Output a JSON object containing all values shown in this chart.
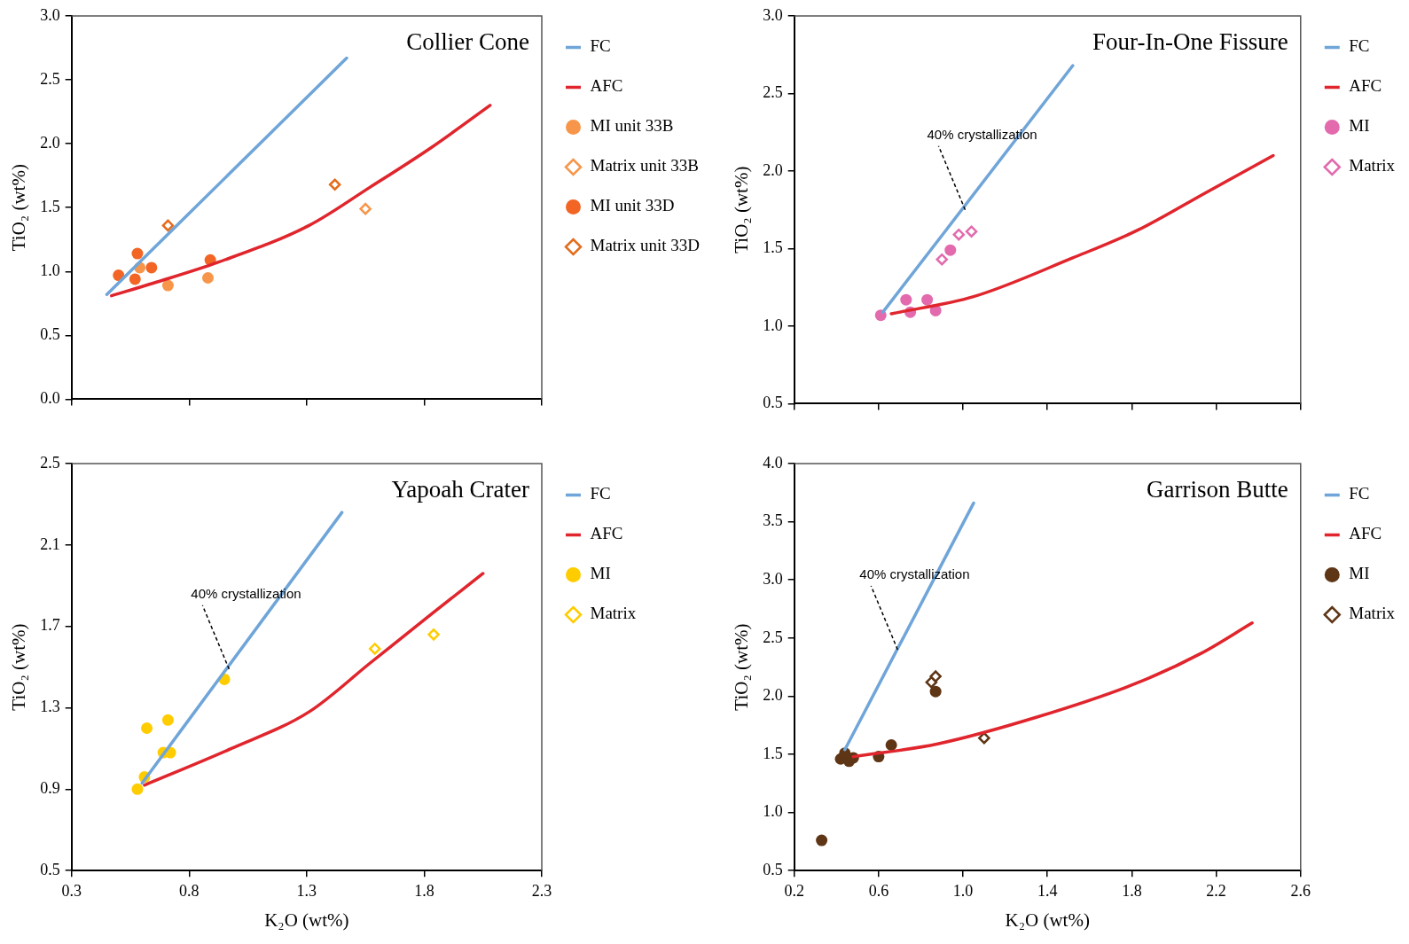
{
  "chart_data": [
    {
      "type": "scatter",
      "title": "Collier Cone",
      "ylabel": "TiO₂ (wt%)",
      "xlim": [
        0.3,
        2.3
      ],
      "xticks": [
        0.3,
        0.8,
        1.3,
        1.8,
        2.3
      ],
      "ylim": [
        0,
        3
      ],
      "yticks": [
        {
          "value": 0,
          "label": "0.0"
        },
        0.5,
        {
          "value": 1,
          "label": "1.0"
        },
        1.5,
        {
          "value": 2,
          "label": "2.0"
        },
        2.5,
        {
          "value": 3,
          "label": "3.0"
        }
      ],
      "tick_labels": "y",
      "grid": false,
      "legend": "top right",
      "series": [
        {
          "name": "FC",
          "type": "line",
          "color": "#6fa5d8",
          "marker": "none",
          "line_style": "solid",
          "x": [
            0.45,
            1.47
          ],
          "values": [
            0.82,
            2.67
          ]
        },
        {
          "name": "AFC",
          "type": "line",
          "color": "#e0252d",
          "marker": "none",
          "line_style": "solid",
          "x": [
            0.47,
            0.65,
            0.92,
            1.31,
            1.57,
            1.83,
            2.08
          ],
          "values": [
            0.81,
            0.91,
            1.07,
            1.36,
            1.66,
            1.97,
            2.3
          ]
        },
        {
          "name": "MI unit 33B",
          "color": "#f7964a",
          "marker": "circle",
          "x": [
            0.59,
            0.71,
            0.88
          ],
          "values": [
            1.03,
            0.89,
            0.95
          ]
        },
        {
          "name": "Matrix unit 33B",
          "color": "#f7964a",
          "marker": "diamond",
          "x": [
            1.55
          ],
          "values": [
            1.49
          ]
        },
        {
          "name": "MI unit 33D",
          "color": "#f26524",
          "marker": "circle",
          "x": [
            0.5,
            0.58,
            0.57,
            0.64,
            0.89
          ],
          "values": [
            0.97,
            1.14,
            0.94,
            1.03,
            1.09
          ]
        },
        {
          "name": "Matrix unit 33D",
          "color": "#e46c1c",
          "marker": "diamond",
          "x": [
            0.71,
            1.42
          ],
          "values": [
            1.36,
            1.68
          ]
        }
      ]
    },
    {
      "type": "scatter",
      "title": "Four-In-One Fissure",
      "ylabel": "TiO₂ (wt%)",
      "xlim": [
        0.2,
        2.6
      ],
      "xticks": [
        0.2,
        0.6,
        1,
        1.4,
        1.8,
        2.2,
        2.6
      ],
      "ylim": [
        0.5,
        3
      ],
      "yticks": [
        0.5,
        {
          "value": 1,
          "label": "1.0"
        },
        1.5,
        {
          "value": 2,
          "label": "2.0"
        },
        2.5,
        {
          "value": 3,
          "label": "3.0"
        }
      ],
      "tick_labels": "y",
      "grid": false,
      "legend": "top right",
      "annotations": [
        {
          "text": "40% crystallization",
          "x": 1.01,
          "y": 1.75
        }
      ],
      "series": [
        {
          "name": "FC",
          "type": "line",
          "color": "#6fa5d8",
          "marker": "none",
          "line_style": "solid",
          "x": [
            0.62,
            1.52
          ],
          "values": [
            1.09,
            2.68
          ]
        },
        {
          "name": "AFC",
          "type": "line",
          "color": "#e0252d",
          "marker": "none",
          "line_style": "solid",
          "x": [
            0.66,
            1.05,
            1.52,
            1.83,
            2.15,
            2.47
          ],
          "values": [
            1.08,
            1.19,
            1.44,
            1.62,
            1.86,
            2.1
          ]
        },
        {
          "name": "MI",
          "color": "#e26aad",
          "marker": "circle",
          "x": [
            0.61,
            0.73,
            0.75,
            0.83,
            0.87,
            0.94
          ],
          "values": [
            1.07,
            1.17,
            1.09,
            1.17,
            1.1,
            1.49
          ]
        },
        {
          "name": "Matrix",
          "color": "#e26aad",
          "marker": "diamond",
          "x": [
            0.9,
            0.98,
            1.04
          ],
          "values": [
            1.43,
            1.59,
            1.61
          ]
        }
      ]
    },
    {
      "type": "scatter",
      "title": "Yapoah Crater",
      "xlabel": "K₂O (wt%)",
      "ylabel": "TiO₂ (wt%)",
      "xlim": [
        0.3,
        2.3
      ],
      "xticks": [
        0.3,
        0.8,
        1.3,
        1.8,
        2.3
      ],
      "ylim": [
        0.5,
        2.5
      ],
      "yticks": [
        0.5,
        0.9,
        1.3,
        1.7,
        2.1,
        2.5
      ],
      "grid": false,
      "legend": "top right",
      "annotations": [
        {
          "text": "40% crystallization",
          "x": 0.97,
          "y": 1.49
        }
      ],
      "series": [
        {
          "name": "FC",
          "type": "line",
          "color": "#6fa5d8",
          "marker": "none",
          "line_style": "solid",
          "x": [
            0.6,
            1.45
          ],
          "values": [
            0.93,
            2.26
          ]
        },
        {
          "name": "AFC",
          "type": "line",
          "color": "#e0252d",
          "marker": "none",
          "line_style": "solid",
          "x": [
            0.61,
            0.98,
            1.31,
            1.57,
            1.83,
            2.05
          ],
          "values": [
            0.92,
            1.1,
            1.28,
            1.52,
            1.76,
            1.96
          ]
        },
        {
          "name": "MI",
          "color": "#ffcc00",
          "marker": "circle",
          "x": [
            0.58,
            0.61,
            0.62,
            0.71,
            0.69,
            0.72,
            0.95
          ],
          "values": [
            0.9,
            0.96,
            1.2,
            1.24,
            1.08,
            1.08,
            1.44
          ]
        },
        {
          "name": "Matrix",
          "color": "#ffcc00",
          "marker": "diamond",
          "x": [
            1.59,
            1.84
          ],
          "values": [
            1.59,
            1.66
          ]
        }
      ]
    },
    {
      "type": "scatter",
      "title": "Garrison Butte",
      "xlabel": "K₂O (wt%)",
      "ylabel": "TiO₂ (wt%)",
      "xlim": [
        0.2,
        2.6
      ],
      "xticks": [
        0.2,
        0.6,
        {
          "value": 1,
          "label": "1.0"
        },
        1.4,
        1.8,
        2.2,
        2.6
      ],
      "ylim": [
        0.5,
        4
      ],
      "yticks": [
        0.5,
        {
          "value": 1,
          "label": "1.0"
        },
        1.5,
        {
          "value": 2,
          "label": "2.0"
        },
        2.5,
        {
          "value": 3,
          "label": "3.0"
        },
        3.5,
        {
          "value": 4,
          "label": "4.0"
        }
      ],
      "grid": false,
      "legend": "top right",
      "annotations": [
        {
          "text": "40% crystallization",
          "x": 0.69,
          "y": 2.4
        }
      ],
      "series": [
        {
          "name": "FC",
          "type": "line",
          "color": "#6fa5d8",
          "marker": "none",
          "line_style": "solid",
          "x": [
            0.44,
            1.05
          ],
          "values": [
            1.54,
            3.66
          ]
        },
        {
          "name": "AFC",
          "type": "line",
          "color": "#e0252d",
          "marker": "none",
          "line_style": "solid",
          "x": [
            0.48,
            0.88,
            1.35,
            1.82,
            2.13,
            2.37
          ],
          "values": [
            1.48,
            1.59,
            1.82,
            2.11,
            2.37,
            2.63
          ]
        },
        {
          "name": "MI",
          "color": "#5e3515",
          "marker": "circle",
          "x": [
            0.33,
            0.42,
            0.44,
            0.46,
            0.48,
            0.6,
            0.66,
            0.87
          ],
          "values": [
            0.76,
            1.46,
            1.51,
            1.44,
            1.47,
            1.48,
            1.58,
            2.04
          ]
        },
        {
          "name": "Matrix",
          "color": "#5e3515",
          "marker": "diamond",
          "x": [
            0.85,
            0.87,
            1.1
          ],
          "values": [
            2.12,
            2.17,
            1.64
          ]
        }
      ]
    }
  ]
}
